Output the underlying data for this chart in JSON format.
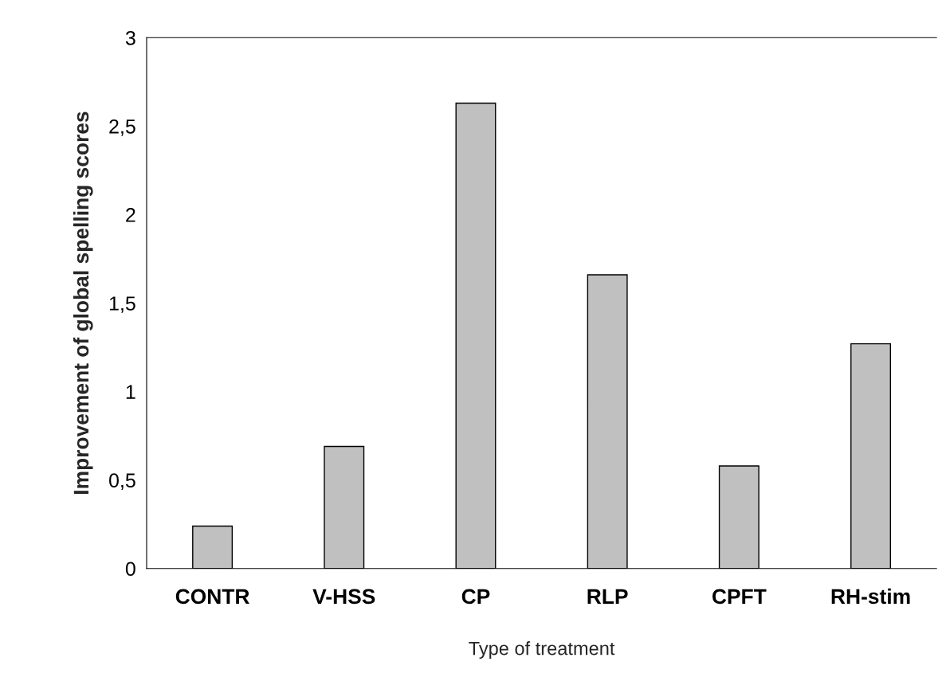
{
  "chart_data": {
    "type": "bar",
    "xlabel": "Type of treatment",
    "ylabel": "Improvement of global spelling scores",
    "categories": [
      "CONTR",
      "V-HSS",
      "CP",
      "RLP",
      "CPFT",
      "RH-stim"
    ],
    "values": [
      0.24,
      0.69,
      2.63,
      1.66,
      0.58,
      1.27
    ],
    "color": "#c0c0c0",
    "ylim": [
      0,
      3
    ],
    "yticks": [
      0,
      {
        "value": 0.5,
        "label": "0,5"
      },
      1,
      {
        "value": 1.5,
        "label": "1,5"
      },
      2,
      {
        "value": 2.5,
        "label": "2,5"
      },
      3
    ],
    "grid": false
  }
}
